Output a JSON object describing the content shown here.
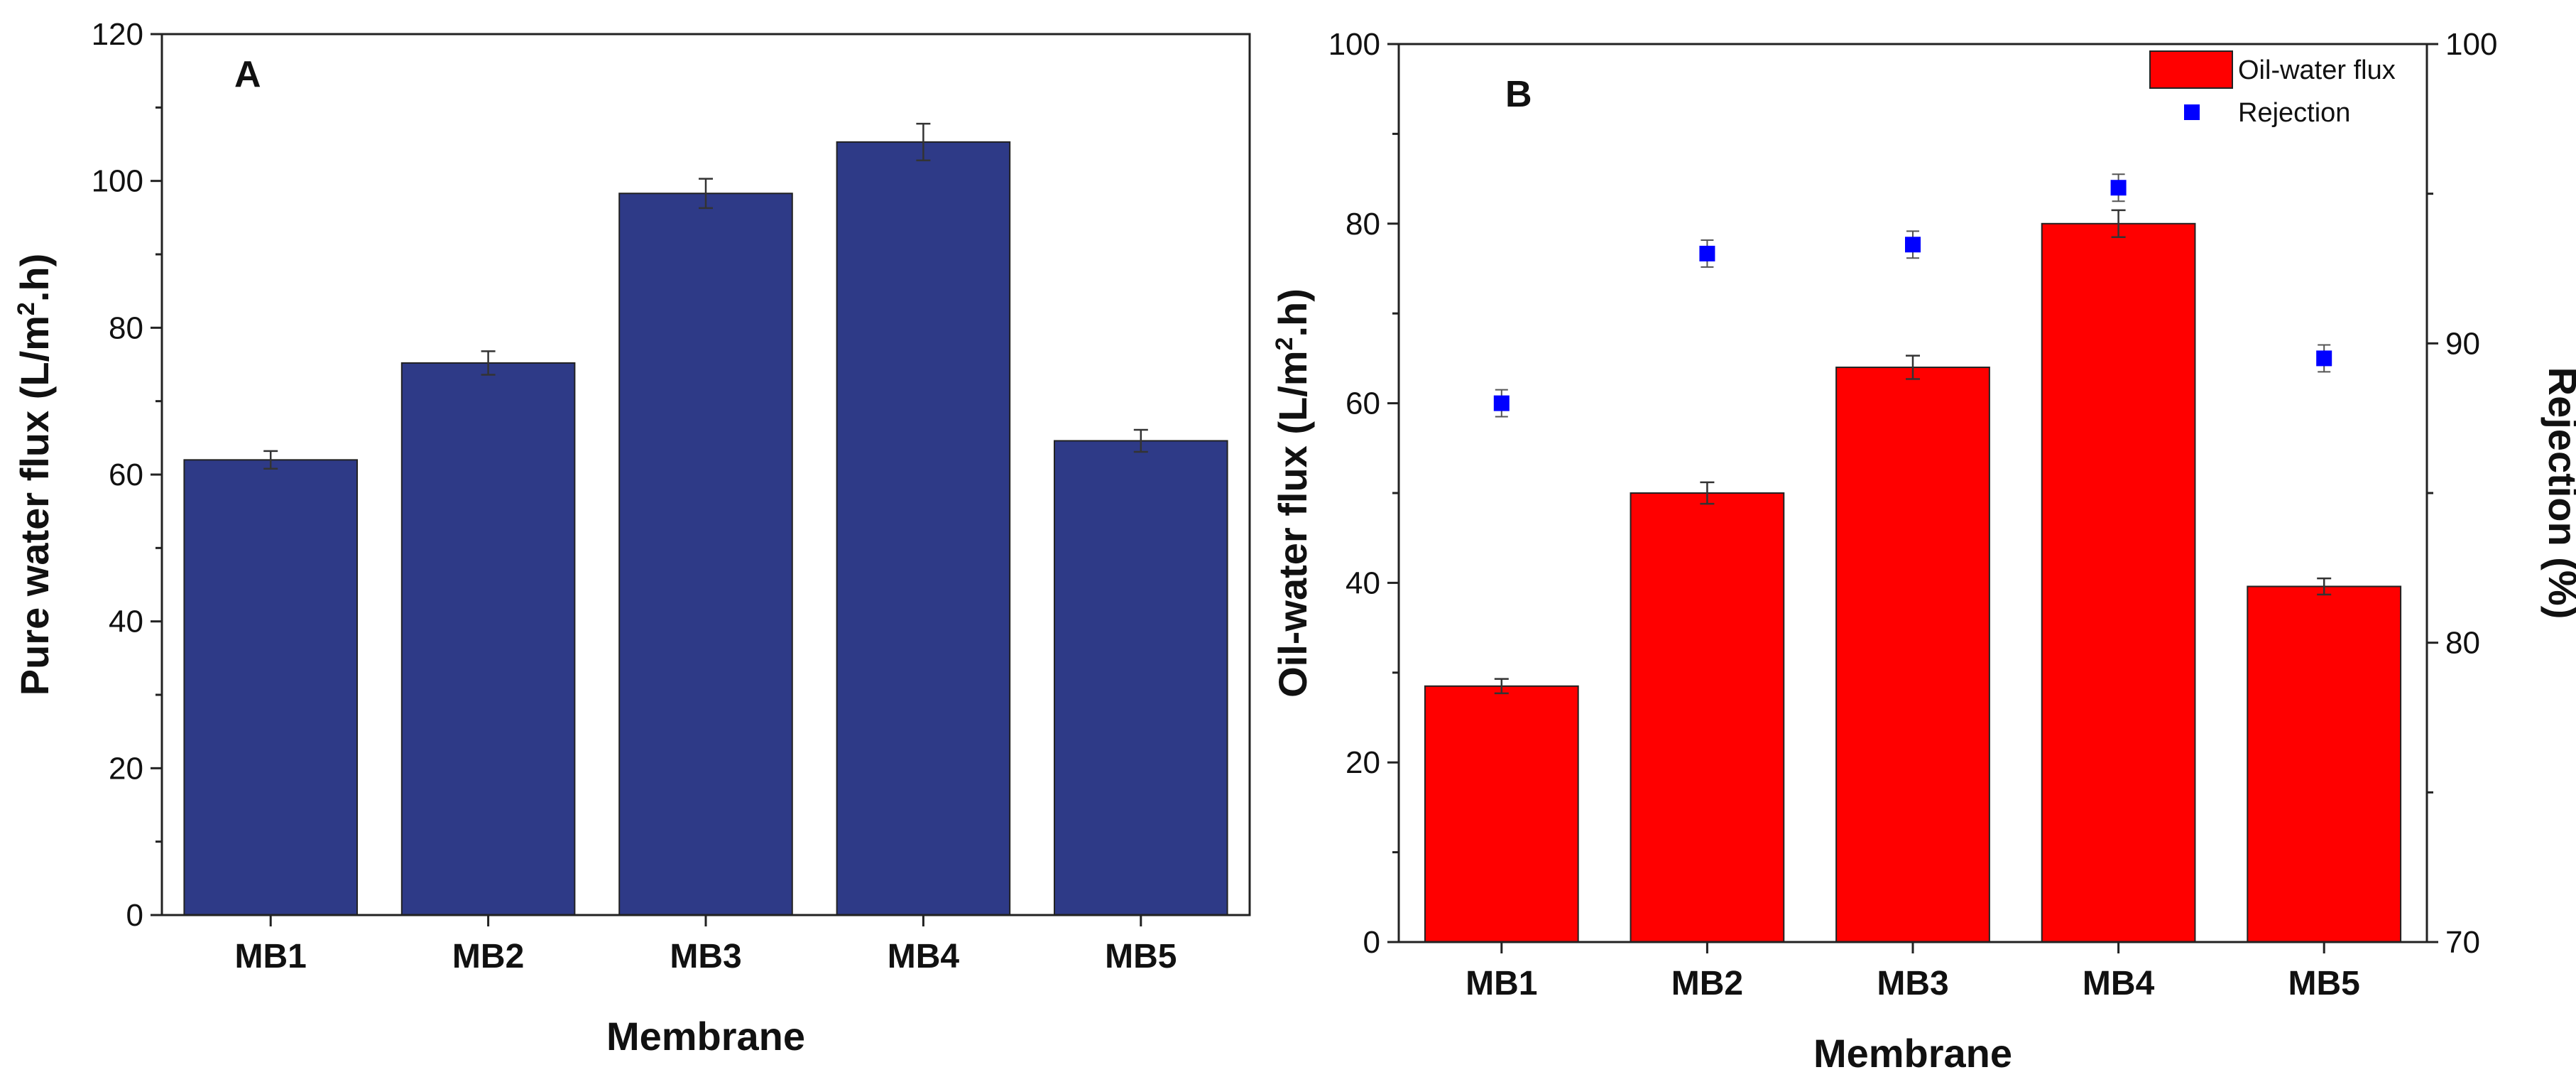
{
  "chart_data": [
    {
      "type": "bar",
      "panel_label": "A",
      "categories": [
        "MB1",
        "MB2",
        "MB3",
        "MB4",
        "MB5"
      ],
      "series": [
        {
          "name": "Pure water flux",
          "color": "#2E3A87",
          "values": [
            62,
            75.2,
            98.3,
            105.3,
            64.6
          ],
          "errors": [
            1.2,
            1.6,
            2.0,
            2.5,
            1.5
          ]
        }
      ],
      "xlabel": "Membrane",
      "ylabel": "Pure water flux (L/m",
      "ylabel_sup": "2",
      "ylabel_tail": ".h)",
      "ylim": [
        0,
        120
      ],
      "yticks": [
        "0",
        "20",
        "40",
        "60",
        "80",
        "100",
        "120"
      ],
      "legend": "none"
    },
    {
      "type": "bar",
      "panel_label": "B",
      "categories": [
        "MB1",
        "MB2",
        "MB3",
        "MB4",
        "MB5"
      ],
      "series": [
        {
          "name": "Oil-water flux",
          "color": "#FF0000",
          "axis": "left",
          "values": [
            28.5,
            50,
            64,
            80,
            39.6
          ],
          "errors": [
            0.8,
            1.2,
            1.3,
            1.5,
            0.9
          ]
        },
        {
          "name": "Rejection",
          "color": "#0000FF",
          "axis": "right",
          "kind": "scatter",
          "values": [
            88,
            93,
            93.3,
            95.2,
            89.5
          ],
          "errors": [
            0.45,
            0.45,
            0.45,
            0.45,
            0.45
          ]
        }
      ],
      "xlabel": "Membrane",
      "ylabel": "Oil-water flux (L/m",
      "ylabel_sup": "2",
      "ylabel_tail": ".h)",
      "y2label": "Rejection (%)",
      "ylim": [
        0,
        100
      ],
      "yticks": [
        "0",
        "20",
        "40",
        "60",
        "80",
        "100"
      ],
      "y2lim": [
        70,
        100
      ],
      "y2ticks": [
        "70",
        "80",
        "90",
        "100"
      ],
      "legend": "top-right"
    }
  ]
}
